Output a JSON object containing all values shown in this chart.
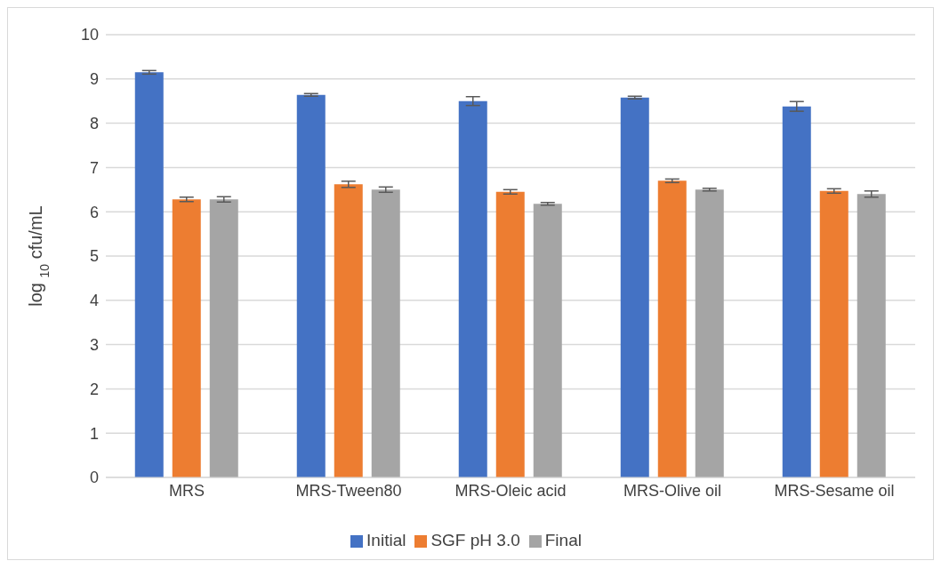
{
  "chart_data": {
    "type": "bar",
    "ylabel": "log $_{10}$ cfu/mL",
    "categories": [
      "MRS",
      "MRS-Tween80",
      "MRS-Oleic acid",
      "MRS-Olive oil",
      "MRS-Sesame oil"
    ],
    "series": [
      {
        "name": "Initial",
        "color": "#4472c4",
        "values": [
          9.15,
          8.64,
          8.5,
          8.58,
          8.38
        ],
        "errors": [
          0.04,
          0.03,
          0.1,
          0.03,
          0.11
        ]
      },
      {
        "name": "SGF pH 3.0",
        "color": "#ed7d31",
        "values": [
          6.28,
          6.62,
          6.45,
          6.7,
          6.47
        ],
        "errors": [
          0.05,
          0.07,
          0.05,
          0.04,
          0.05
        ]
      },
      {
        "name": "Final",
        "color": "#a5a5a5",
        "values": [
          6.28,
          6.5,
          6.18,
          6.5,
          6.4
        ],
        "errors": [
          0.06,
          0.06,
          0.03,
          0.03,
          0.07
        ]
      }
    ],
    "ylim": [
      0,
      10
    ],
    "yticks": [
      0,
      1,
      2,
      3,
      4,
      5,
      6,
      7,
      8,
      9,
      10
    ],
    "grid": "y",
    "legend": "bottom"
  }
}
